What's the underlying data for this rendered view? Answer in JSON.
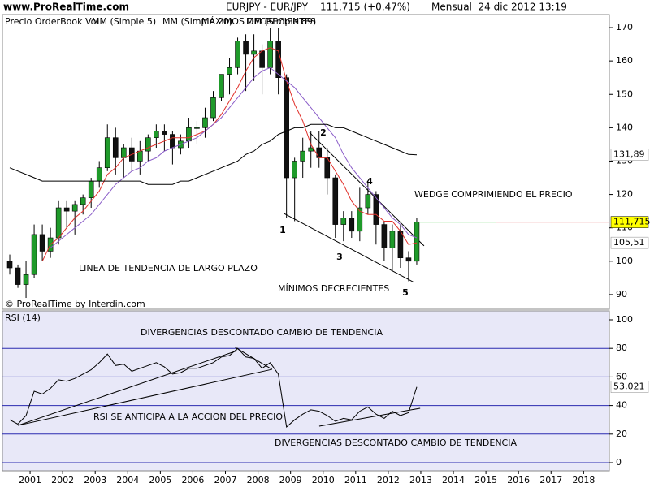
{
  "header": {
    "site": "www.ProRealTime.com",
    "title": "EURJPY - EUR/JPY",
    "quote": "111,715 (+0,47%)",
    "period": "Mensual  24 dic 2012 13:19"
  },
  "chart_data": [
    {
      "type": "candlestick",
      "title": "Precio OrderBook Vol",
      "credit": "© ProRealTime by Interdin.com",
      "x": [
        2000.375,
        2000.625,
        2000.875,
        2001.125,
        2001.375,
        2001.625,
        2001.875,
        2002.125,
        2002.375,
        2002.625,
        2002.875,
        2003.125,
        2003.375,
        2003.625,
        2003.875,
        2004.125,
        2004.375,
        2004.625,
        2004.875,
        2005.125,
        2005.375,
        2005.625,
        2005.875,
        2006.125,
        2006.375,
        2006.625,
        2006.875,
        2007.125,
        2007.375,
        2007.625,
        2007.875,
        2008.125,
        2008.375,
        2008.625,
        2008.875,
        2009.125,
        2009.375,
        2009.625,
        2009.875,
        2010.125,
        2010.375,
        2010.625,
        2010.875,
        2011.125,
        2011.375,
        2011.625,
        2011.875,
        2012.125,
        2012.375,
        2012.625,
        2012.875
      ],
      "open": [
        100,
        98,
        93,
        96,
        108,
        103,
        107,
        116,
        115,
        117,
        119,
        124,
        128,
        137,
        131,
        134,
        130,
        133,
        137,
        139,
        138,
        134,
        136,
        140,
        140,
        143,
        149,
        156,
        158,
        166,
        162,
        163,
        158,
        166,
        155,
        125,
        130,
        133,
        134,
        131,
        125,
        111,
        113,
        109,
        116,
        120,
        111,
        104,
        109,
        101,
        100
      ],
      "high": [
        102,
        99,
        100,
        111,
        111,
        110,
        118,
        118,
        118,
        120,
        125,
        130,
        141,
        140,
        135,
        137,
        136,
        138,
        141,
        141,
        139,
        138,
        143,
        142,
        146,
        151,
        156,
        161,
        167,
        168,
        168,
        165,
        170,
        170,
        156,
        131,
        137,
        139,
        139,
        134,
        126,
        115,
        115,
        122,
        124,
        121,
        112,
        111,
        111,
        103,
        113
      ],
      "low": [
        96,
        92,
        89,
        95,
        100,
        101,
        105,
        110,
        108,
        114,
        116,
        122,
        127,
        126,
        125,
        127,
        126,
        130,
        134,
        133,
        129,
        132,
        134,
        135,
        137,
        142,
        148,
        150,
        156,
        151,
        154,
        150,
        156,
        150,
        113,
        112,
        125,
        128,
        128,
        120,
        107,
        106,
        107,
        106,
        114,
        105,
        100,
        97,
        98,
        94,
        99
      ],
      "close": [
        98,
        93,
        96,
        108,
        103,
        107,
        116,
        115,
        117,
        119,
        124,
        128,
        137,
        131,
        134,
        130,
        133,
        137,
        139,
        138,
        134,
        136,
        140,
        140,
        143,
        149,
        156,
        158,
        166,
        162,
        163,
        158,
        166,
        155,
        125,
        130,
        133,
        134,
        131,
        125,
        111,
        113,
        109,
        116,
        120,
        111,
        104,
        109,
        101,
        100,
        111.715
      ],
      "last_label": "111,715",
      "up_color": "#1f9a2a",
      "down_color": "#111111",
      "series": [
        {
          "name": "MM (Simple 5)",
          "color": "#e0302a",
          "last_label": "105,51",
          "values": [
            null,
            null,
            null,
            null,
            100,
            105,
            107,
            110,
            113,
            115,
            118,
            121,
            126,
            128,
            131,
            132,
            133,
            134,
            135,
            136,
            137,
            137,
            137,
            138,
            139,
            141,
            144,
            148,
            152,
            157,
            161,
            163,
            164,
            163,
            154,
            147,
            142,
            135,
            131,
            131,
            127,
            123,
            118,
            115,
            114,
            114,
            112,
            112,
            109,
            105,
            105.51
          ]
        },
        {
          "name": "MM (Simple 20)",
          "color": "#8a5cc8",
          "values": [
            null,
            null,
            null,
            null,
            null,
            104,
            106,
            108,
            110,
            112,
            114,
            117,
            120,
            123,
            125,
            127,
            128,
            130,
            131,
            133,
            134,
            135,
            136,
            137,
            139,
            141,
            143,
            146,
            149,
            152,
            155,
            157,
            158,
            156,
            154,
            152,
            149,
            146,
            143,
            140,
            137,
            132,
            128,
            125,
            122,
            119,
            116,
            113,
            111,
            108,
            107
          ]
        },
        {
          "name": "MM (Simple 89)",
          "color": "#000000",
          "last_label": "131,89",
          "values": [
            128,
            127,
            126,
            125,
            124,
            124,
            124,
            124,
            124,
            124,
            124,
            124,
            124,
            124,
            124,
            124,
            124,
            123,
            123,
            123,
            123,
            124,
            124,
            125,
            126,
            127,
            128,
            129,
            130,
            132,
            133,
            135,
            136,
            138,
            139,
            140,
            140,
            141,
            141,
            141,
            140,
            140,
            139,
            138,
            137,
            136,
            135,
            134,
            133,
            132,
            131.89
          ]
        }
      ],
      "xlim": [
        2000.15,
        2018.79
      ],
      "ylim": [
        85.6,
        173.9
      ],
      "yticks": [
        90,
        100,
        110,
        120,
        130,
        140,
        150,
        160,
        170
      ],
      "annotations": [
        "MÁXIMOS DECRECIENTES",
        "WEDGE COMPRIMIENDO EL PRECIO",
        "LINEA DE TENDENCIA DE LARGO PLAZO",
        "MÍNIMOS DECRECIENTES",
        "1",
        "2",
        "3",
        "4",
        "5"
      ],
      "trendlines": [
        {
          "x": [
            2009.58,
            2013.1
          ],
          "y": [
            138.6,
            104.6
          ]
        },
        {
          "x": [
            2008.8,
            2012.8
          ],
          "y": [
            114.3,
            93.6
          ]
        }
      ]
    },
    {
      "type": "line",
      "title": "RSI (14)",
      "x": [
        2000.375,
        2000.625,
        2000.875,
        2001.125,
        2001.375,
        2001.625,
        2001.875,
        2002.125,
        2002.375,
        2002.625,
        2002.875,
        2003.125,
        2003.375,
        2003.625,
        2003.875,
        2004.125,
        2004.375,
        2004.625,
        2004.875,
        2005.125,
        2005.375,
        2005.625,
        2005.875,
        2006.125,
        2006.375,
        2006.625,
        2006.875,
        2007.125,
        2007.375,
        2007.625,
        2007.875,
        2008.125,
        2008.375,
        2008.625,
        2008.875,
        2009.125,
        2009.375,
        2009.625,
        2009.875,
        2010.125,
        2010.375,
        2010.625,
        2010.875,
        2011.125,
        2011.375,
        2011.625,
        2011.875,
        2012.125,
        2012.375,
        2012.625,
        2012.875
      ],
      "series": [
        {
          "color": "#000000",
          "last_label": "53,021",
          "values": [
            30,
            27,
            33,
            50,
            48,
            52,
            58,
            57,
            59,
            62,
            65,
            70,
            76,
            68,
            69,
            64,
            66,
            68,
            70,
            67,
            62,
            63,
            66,
            66,
            68,
            70,
            74,
            75,
            80,
            74,
            73,
            66,
            70,
            62,
            25,
            30,
            34,
            37,
            36,
            33,
            29,
            31,
            30,
            36,
            39,
            34,
            31,
            36,
            33,
            35,
            53.021
          ]
        }
      ],
      "xlim": [
        2000.15,
        2018.79
      ],
      "xticks": [
        2001,
        2002,
        2003,
        2004,
        2005,
        2006,
        2007,
        2008,
        2009,
        2010,
        2011,
        2012,
        2013,
        2014,
        2015,
        2016,
        2017,
        2018
      ],
      "ylim": [
        -5.68,
        106.25
      ],
      "yticks": [
        0,
        20,
        40,
        60,
        80,
        100
      ],
      "grid": true,
      "grid_color": "#2a2ab0",
      "annotations": [
        "DIVERGENCIAS DESCONTADO CAMBIO DE TENDENCIA",
        "RSI SE ANTICIPA A LA ACCION DEL PRECIO",
        "DIVERGENCIAS DESCONTADO CAMBIO DE TENDENCIA"
      ],
      "trendlines": [
        {
          "x": [
            2000.63,
            2007.36
          ],
          "y": [
            26.1,
            78.4
          ]
        },
        {
          "x": [
            2007.3,
            2008.43
          ],
          "y": [
            80.7,
            65.3
          ]
        },
        {
          "x": [
            2000.63,
            2008.43
          ],
          "y": [
            26.1,
            65.3
          ]
        },
        {
          "x": [
            2009.88,
            2012.98
          ],
          "y": [
            25.6,
            38.1
          ]
        }
      ]
    }
  ]
}
